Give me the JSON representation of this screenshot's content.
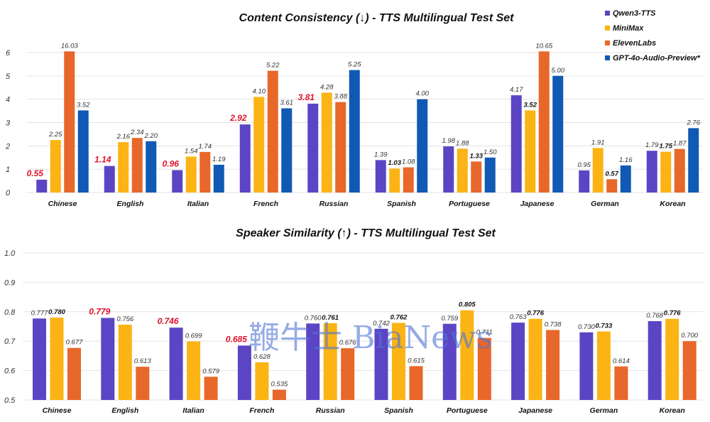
{
  "watermark": "鞭牛士 BiaNews",
  "legend": [
    {
      "name": "Qwen3-TTS",
      "color": "#5b45c4"
    },
    {
      "name": "MiniMax",
      "color": "#fbb414"
    },
    {
      "name": "ElevenLabs",
      "color": "#e8672a"
    },
    {
      "name": "GPT-4o-Audio-Preview*",
      "color": "#1059b4"
    }
  ],
  "chart_data": [
    {
      "type": "bar",
      "title": "Content Consistency (↓) - TTS Multilingual Test Set",
      "xlabel": "",
      "ylabel": "",
      "ylim": [
        0,
        6
      ],
      "yticks": [
        "0",
        "1",
        "2",
        "3",
        "4",
        "5",
        "6"
      ],
      "grid": true,
      "legend": "top-right",
      "categories": [
        "Chinese",
        "English",
        "Italian",
        "French",
        "Russian",
        "Spanish",
        "Portuguese",
        "Japanese",
        "German",
        "Korean"
      ],
      "series": [
        {
          "name": "Qwen3-TTS",
          "values": [
            0.55,
            1.14,
            0.96,
            2.92,
            3.81,
            1.39,
            1.98,
            4.17,
            0.95,
            1.79
          ],
          "labels": [
            "0.55",
            "1.14",
            "0.96",
            "2.92",
            "3.81",
            "1.39",
            "1.98",
            "4.17",
            "0.95",
            "1.79"
          ],
          "style": [
            "red",
            "red",
            "red",
            "red",
            "red",
            "normal",
            "normal",
            "normal",
            "normal",
            "normal"
          ]
        },
        {
          "name": "MiniMax",
          "values": [
            2.25,
            2.16,
            1.54,
            4.1,
            4.28,
            1.03,
            1.88,
            3.52,
            1.91,
            1.75
          ],
          "labels": [
            "2.25",
            "2.16",
            "1.54",
            "4.10",
            "4.28",
            "1.03",
            "1.88",
            "3.52",
            "1.91",
            "1.75"
          ],
          "style": [
            "normal",
            "normal",
            "normal",
            "normal",
            "normal",
            "bold",
            "normal",
            "bold",
            "normal",
            "bold"
          ]
        },
        {
          "name": "ElevenLabs",
          "values": [
            16.03,
            2.34,
            1.74,
            5.22,
            3.88,
            1.08,
            1.33,
            10.65,
            0.57,
            1.87
          ],
          "labels": [
            "16.03",
            "2.34",
            "1.74",
            "5.22",
            "3.88",
            "1.08",
            "1.33",
            "10.65",
            "0.57",
            "1.87"
          ],
          "style": [
            "normal",
            "normal",
            "normal",
            "normal",
            "normal",
            "normal",
            "bold",
            "normal",
            "bold",
            "normal"
          ]
        },
        {
          "name": "GPT-4o-Audio-Preview*",
          "values": [
            3.52,
            2.2,
            1.19,
            3.61,
            5.25,
            4.0,
            1.5,
            5.0,
            1.16,
            2.76
          ],
          "labels": [
            "3.52",
            "2.20",
            "1.19",
            "3.61",
            "5.25",
            "4.00",
            "1.50",
            "5.00",
            "1.16",
            "2.76"
          ],
          "style": [
            "normal",
            "normal",
            "normal",
            "normal",
            "normal",
            "normal",
            "normal",
            "normal",
            "normal",
            "normal"
          ]
        }
      ]
    },
    {
      "type": "bar",
      "title": "Speaker Similarity (↑) - TTS Multilingual Test Set",
      "xlabel": "",
      "ylabel": "",
      "ylim": [
        0.5,
        1.0
      ],
      "yticks": [
        "0.5",
        "0.6",
        "0.7",
        "0.8",
        "0.9",
        "1.0"
      ],
      "grid": true,
      "categories": [
        "Chinese",
        "English",
        "Italian",
        "French",
        "Russian",
        "Spanish",
        "Portuguese",
        "Japanese",
        "German",
        "Korean"
      ],
      "series": [
        {
          "name": "Qwen3-TTS",
          "values": [
            0.777,
            0.779,
            0.746,
            0.685,
            0.76,
            0.742,
            0.759,
            0.763,
            0.73,
            0.768
          ],
          "labels": [
            "0.777",
            "0.779",
            "0.746",
            "0.685",
            "0.760",
            "0.742",
            "0.759",
            "0.763",
            "0.730",
            "0.768"
          ],
          "style": [
            "normal",
            "red",
            "red",
            "red",
            "normal",
            "normal",
            "normal",
            "normal",
            "normal",
            "normal"
          ]
        },
        {
          "name": "MiniMax",
          "values": [
            0.78,
            0.756,
            0.699,
            0.628,
            0.761,
            0.762,
            0.805,
            0.776,
            0.733,
            0.776
          ],
          "labels": [
            "0.780",
            "0.756",
            "0.699",
            "0.628",
            "0.761",
            "0.762",
            "0.805",
            "0.776",
            "0.733",
            "0.776"
          ],
          "style": [
            "bold",
            "normal",
            "normal",
            "normal",
            "bold",
            "bold",
            "bold",
            "bold",
            "bold",
            "bold"
          ]
        },
        {
          "name": "ElevenLabs",
          "values": [
            0.677,
            0.613,
            0.579,
            0.535,
            0.676,
            0.615,
            0.711,
            0.738,
            0.614,
            0.7
          ],
          "labels": [
            "0.677",
            "0.613",
            "0.579",
            "0.535",
            "0.676",
            "0.615",
            "0.711",
            "0.738",
            "0.614",
            "0.700"
          ],
          "style": [
            "normal",
            "normal",
            "normal",
            "normal",
            "normal",
            "normal",
            "normal",
            "normal",
            "normal",
            "normal"
          ]
        }
      ]
    }
  ]
}
